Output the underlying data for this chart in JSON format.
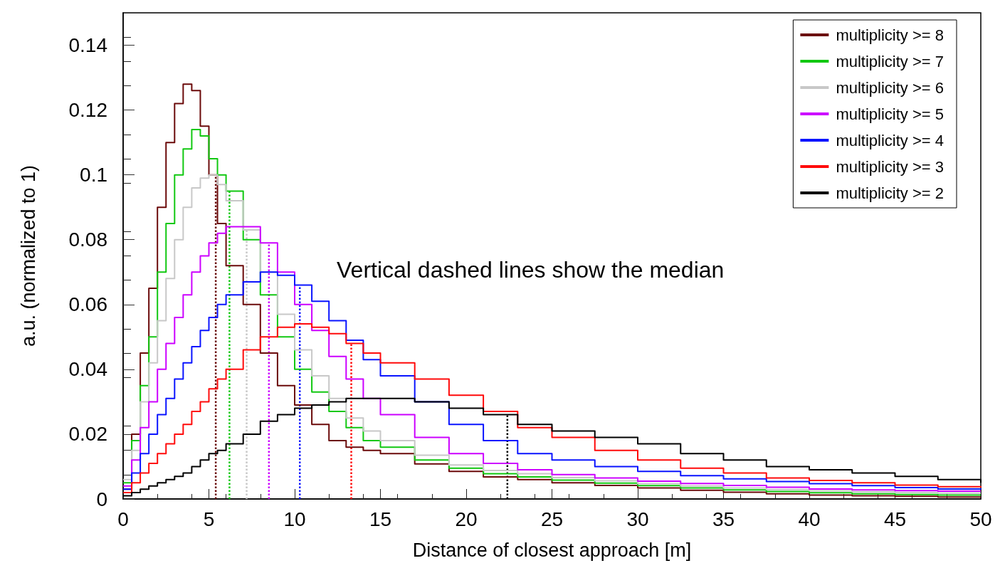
{
  "chart_data": {
    "type": "step",
    "xlabel": "Distance of closest approach [m]",
    "ylabel": "a.u. (normalized to 1)",
    "x": [
      0,
      0.5,
      1,
      1.5,
      2,
      2.5,
      3,
      3.5,
      4,
      4.5,
      5,
      5.5,
      6,
      7,
      8,
      9,
      10,
      11,
      12,
      13,
      14,
      15,
      17,
      19,
      21,
      23,
      25,
      27.5,
      30,
      32.5,
      35,
      37.5,
      40,
      42.5,
      45,
      47.5,
      50
    ],
    "series": [
      {
        "name": "multiplicity >= 8",
        "color": "#6b0a0a",
        "values": [
          0.003,
          0.02,
          0.045,
          0.065,
          0.09,
          0.11,
          0.122,
          0.128,
          0.126,
          0.115,
          0.1,
          0.085,
          0.072,
          0.06,
          0.045,
          0.035,
          0.029,
          0.023,
          0.018,
          0.016,
          0.015,
          0.014,
          0.0108,
          0.0085,
          0.0068,
          0.006,
          0.005,
          0.0042,
          0.0034,
          0.0027,
          0.0021,
          0.0016,
          0.0012,
          0.001,
          0.0008,
          0.0006,
          0.0005
        ]
      },
      {
        "name": "multiplicity >= 7",
        "color": "#11c811",
        "values": [
          0.005,
          0.018,
          0.035,
          0.05,
          0.07,
          0.085,
          0.1,
          0.108,
          0.114,
          0.112,
          0.105,
          0.1,
          0.095,
          0.08,
          0.063,
          0.05,
          0.04,
          0.033,
          0.027,
          0.022,
          0.018,
          0.016,
          0.012,
          0.0095,
          0.0078,
          0.0068,
          0.0058,
          0.0049,
          0.0041,
          0.0034,
          0.0028,
          0.0023,
          0.0019,
          0.0016,
          0.0014,
          0.0012,
          0.0011
        ]
      },
      {
        "name": "multiplicity >= 6",
        "color": "#c8c8c8",
        "values": [
          0.006,
          0.015,
          0.03,
          0.042,
          0.055,
          0.068,
          0.08,
          0.09,
          0.096,
          0.099,
          0.1,
          0.097,
          0.092,
          0.083,
          0.07,
          0.057,
          0.046,
          0.038,
          0.031,
          0.025,
          0.021,
          0.018,
          0.0135,
          0.0105,
          0.0088,
          0.0078,
          0.0066,
          0.0056,
          0.0047,
          0.004,
          0.0034,
          0.0029,
          0.0025,
          0.0022,
          0.002,
          0.0018,
          0.0017
        ]
      },
      {
        "name": "multiplicity >= 5",
        "color": "#cc00ff",
        "values": [
          0.004,
          0.012,
          0.022,
          0.03,
          0.04,
          0.048,
          0.056,
          0.063,
          0.07,
          0.075,
          0.079,
          0.082,
          0.084,
          0.084,
          0.079,
          0.07,
          0.06,
          0.052,
          0.044,
          0.037,
          0.031,
          0.026,
          0.019,
          0.014,
          0.011,
          0.009,
          0.0075,
          0.0065,
          0.0055,
          0.0048,
          0.0042,
          0.0036,
          0.0031,
          0.0028,
          0.0026,
          0.0024,
          0.0023
        ]
      },
      {
        "name": "multiplicity >= 4",
        "color": "#0a14ff",
        "values": [
          0.003,
          0.008,
          0.014,
          0.02,
          0.026,
          0.031,
          0.037,
          0.042,
          0.047,
          0.052,
          0.056,
          0.06,
          0.063,
          0.067,
          0.07,
          0.069,
          0.066,
          0.061,
          0.055,
          0.049,
          0.043,
          0.038,
          0.03,
          0.023,
          0.018,
          0.014,
          0.012,
          0.01,
          0.0085,
          0.0072,
          0.0062,
          0.0054,
          0.0047,
          0.0041,
          0.0035,
          0.0031,
          0.0029
        ]
      },
      {
        "name": "multiplicity >= 3",
        "color": "#ff0a0a",
        "values": [
          0.002,
          0.005,
          0.008,
          0.011,
          0.014,
          0.017,
          0.02,
          0.023,
          0.027,
          0.03,
          0.034,
          0.037,
          0.04,
          0.046,
          0.05,
          0.053,
          0.054,
          0.053,
          0.051,
          0.048,
          0.045,
          0.042,
          0.037,
          0.032,
          0.027,
          0.022,
          0.019,
          0.015,
          0.012,
          0.0095,
          0.008,
          0.0065,
          0.0057,
          0.005,
          0.0043,
          0.0038,
          0.0035
        ]
      },
      {
        "name": "multiplicity >= 2",
        "color": "#000000",
        "values": [
          0.001,
          0.002,
          0.003,
          0.004,
          0.005,
          0.006,
          0.007,
          0.008,
          0.01,
          0.012,
          0.014,
          0.015,
          0.017,
          0.02,
          0.024,
          0.026,
          0.028,
          0.029,
          0.03,
          0.031,
          0.031,
          0.031,
          0.03,
          0.028,
          0.026,
          0.023,
          0.021,
          0.019,
          0.017,
          0.014,
          0.012,
          0.01,
          0.009,
          0.008,
          0.007,
          0.006,
          0.005
        ]
      }
    ],
    "ref_lines": [
      {
        "axis": "x",
        "value": 5.4,
        "color": "#6b0a0a",
        "line_style": "dotted"
      },
      {
        "axis": "x",
        "value": 6.2,
        "color": "#11c811",
        "line_style": "dotted"
      },
      {
        "axis": "x",
        "value": 7.2,
        "color": "#c8c8c8",
        "line_style": "dotted"
      },
      {
        "axis": "x",
        "value": 8.5,
        "color": "#cc00ff",
        "line_style": "dotted"
      },
      {
        "axis": "x",
        "value": 10.3,
        "color": "#0a14ff",
        "line_style": "dotted"
      },
      {
        "axis": "x",
        "value": 13.3,
        "color": "#ff0a0a",
        "line_style": "dotted"
      },
      {
        "axis": "x",
        "value": 22.4,
        "color": "#000000",
        "line_style": "dotted"
      }
    ],
    "annotations": [
      "Vertical dashed lines show the median"
    ],
    "xlim": [
      0,
      50
    ],
    "xticks": [
      0,
      5,
      10,
      15,
      20,
      25,
      30,
      35,
      40,
      45,
      50
    ],
    "ylim": [
      0,
      0.15
    ],
    "yticks": [
      0,
      0.02,
      0.04,
      0.06,
      0.08,
      0.1,
      0.12,
      0.14
    ],
    "grid": false,
    "legend": "top right",
    "marker": "none",
    "line_style": "solid"
  }
}
